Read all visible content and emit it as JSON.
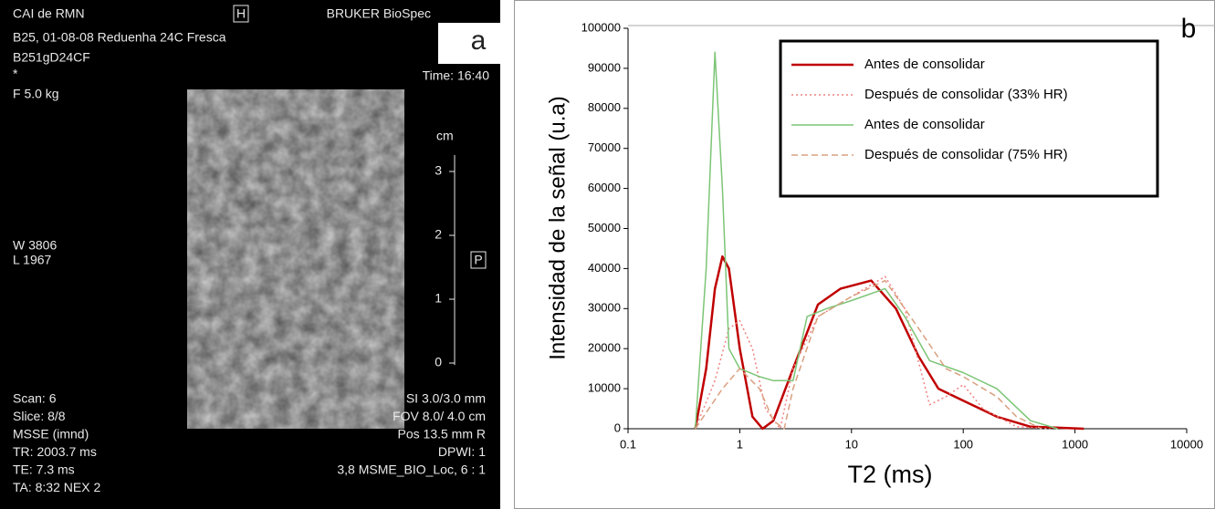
{
  "image_panel": {
    "panel_label": "a",
    "header_left": "CAI de RMN",
    "orientation_top": "H",
    "header_right": "BRUKER BioSpec",
    "study": "B25, 01-08-08 Reduenha 24C Fresca",
    "sample_id": "B251gD24CF",
    "time": "Time: 16:40",
    "marker": "*",
    "force": "F 5.0 kg",
    "scale_unit": "cm",
    "scale_labels": [
      "3",
      "2",
      "1",
      "0"
    ],
    "window": "W 3806",
    "level": "L 1967",
    "orientation_side": "P",
    "params_left": [
      "Scan: 6",
      "Slice: 8/8",
      "MSSE (imnd)",
      "TR: 2003.7 ms",
      "TE: 7.3 ms",
      "TA: 8:32 NEX 2"
    ],
    "params_right": [
      "SI 3.0/3.0 mm",
      "FOV  8.0/ 4.0 cm",
      "Pos 13.5 mm R",
      "DPWI: 1",
      "3,8 MSME_BIO_Loc, 6 : 1"
    ]
  },
  "chart_data": {
    "type": "line",
    "panel_label": "b",
    "x_label": "T2 (ms)",
    "y_label": "Intensidad de la señal (u.a)",
    "xscale": "log",
    "xlim": [
      0.1,
      10000
    ],
    "xticks": [
      0.1,
      1,
      10,
      100,
      1000,
      10000
    ],
    "ylim": [
      0,
      100000
    ],
    "yticks": [
      0,
      10000,
      20000,
      30000,
      40000,
      50000,
      60000,
      70000,
      80000,
      90000,
      100000
    ],
    "legend": "upper right",
    "series": [
      {
        "name": "Antes de consolidar",
        "color": "#c00000",
        "style": "solid",
        "width": 2.5,
        "x": [
          0.4,
          0.5,
          0.6,
          0.7,
          0.8,
          1,
          1.3,
          1.6,
          2,
          3,
          5,
          8,
          15,
          25,
          40,
          60,
          100,
          200,
          400,
          800,
          1200
        ],
        "values": [
          0,
          15000,
          35000,
          43000,
          40000,
          20000,
          3000,
          0,
          2000,
          15000,
          31000,
          35000,
          37000,
          30000,
          18000,
          10000,
          7000,
          3000,
          500,
          200,
          0
        ]
      },
      {
        "name": "Después de consolidar (33% HR)",
        "color": "#f08080",
        "style": "dotted",
        "width": 1.5,
        "x": [
          0.4,
          0.6,
          0.8,
          1,
          1.3,
          1.7,
          2.3,
          3,
          5,
          10,
          20,
          30,
          50,
          70,
          100,
          150,
          300,
          600
        ],
        "values": [
          0,
          12000,
          25000,
          27000,
          20000,
          5000,
          0,
          15000,
          28000,
          33000,
          38000,
          30000,
          6000,
          8000,
          11000,
          5000,
          500,
          0
        ]
      },
      {
        "name": "Antes de consolidar",
        "color": "#7cc576",
        "style": "solid",
        "width": 1.5,
        "x": [
          0.4,
          0.5,
          0.6,
          0.7,
          0.8,
          1,
          1.5,
          2,
          3,
          4,
          6,
          10,
          20,
          30,
          50,
          100,
          200,
          400,
          700
        ],
        "values": [
          0,
          40000,
          94000,
          60000,
          20000,
          15000,
          13000,
          12000,
          12000,
          28000,
          30000,
          32000,
          35000,
          28000,
          17000,
          14000,
          10000,
          2000,
          0
        ]
      },
      {
        "name": "Después de consolidar (75% HR)",
        "color": "#d9a080",
        "style": "dashed",
        "width": 1.5,
        "x": [
          0.4,
          0.7,
          1,
          1.5,
          2,
          2.5,
          3,
          5,
          10,
          20,
          40,
          70,
          100,
          200,
          300,
          500
        ],
        "values": [
          0,
          10000,
          15000,
          10000,
          2000,
          0,
          10000,
          28000,
          33000,
          37000,
          25000,
          15000,
          13000,
          8000,
          3000,
          0
        ]
      }
    ]
  }
}
